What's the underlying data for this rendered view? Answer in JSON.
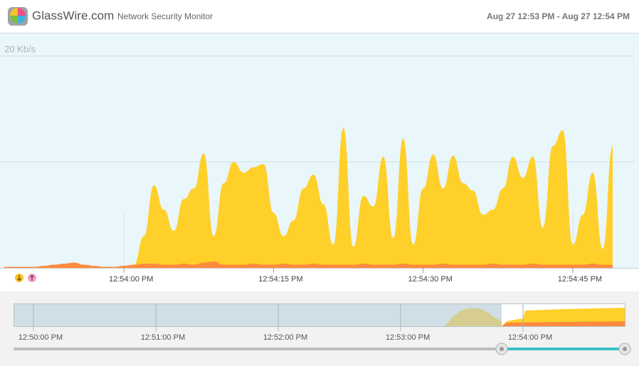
{
  "header": {
    "logo": "GlassWire.com",
    "subtitle": "Network Security Monitor",
    "time_range": "Aug 27 12:53 PM - Aug 27 12:54 PM"
  },
  "chart_data": {
    "type": "area",
    "x": [
      "12:53:48 PM",
      "12:53:49 PM",
      "12:53:50 PM",
      "12:53:51 PM",
      "12:53:52 PM",
      "12:53:53 PM",
      "12:53:54 PM",
      "12:53:55 PM",
      "12:53:56 PM",
      "12:53:57 PM",
      "12:53:58 PM",
      "12:53:59 PM",
      "12:54:00 PM",
      "12:54:01 PM",
      "12:54:02 PM",
      "12:54:03 PM",
      "12:54:04 PM",
      "12:54:05 PM",
      "12:54:06 PM",
      "12:54:07 PM",
      "12:54:08 PM",
      "12:54:09 PM",
      "12:54:10 PM",
      "12:54:11 PM",
      "12:54:12 PM",
      "12:54:13 PM",
      "12:54:14 PM",
      "12:54:15 PM",
      "12:54:16 PM",
      "12:54:17 PM",
      "12:54:18 PM",
      "12:54:19 PM",
      "12:54:20 PM",
      "12:54:21 PM",
      "12:54:22 PM",
      "12:54:23 PM",
      "12:54:24 PM",
      "12:54:25 PM",
      "12:54:26 PM",
      "12:54:27 PM",
      "12:54:28 PM",
      "12:54:29 PM",
      "12:54:30 PM",
      "12:54:31 PM",
      "12:54:32 PM",
      "12:54:33 PM",
      "12:54:34 PM",
      "12:54:35 PM",
      "12:54:36 PM",
      "12:54:37 PM",
      "12:54:38 PM",
      "12:54:39 PM",
      "12:54:40 PM",
      "12:54:41 PM",
      "12:54:42 PM",
      "12:54:43 PM",
      "12:54:44 PM",
      "12:54:45 PM",
      "12:54:46 PM",
      "12:54:47 PM",
      "12:54:48 PM",
      "12:54:49 PM"
    ],
    "series": [
      {
        "color": "#ffd02a",
        "values": [
          0,
          0,
          0,
          0,
          0,
          0,
          0,
          0,
          0,
          0,
          0,
          0,
          0.2,
          0.3,
          3.0,
          7.8,
          5.5,
          3.5,
          6.5,
          7.5,
          10.8,
          3.0,
          8.0,
          10.0,
          9.0,
          9.5,
          9.8,
          5.2,
          3.0,
          4.5,
          7.5,
          8.8,
          6.0,
          2.2,
          13.2,
          2.0,
          6.8,
          5.8,
          10.5,
          2.8,
          12.2,
          2.2,
          7.5,
          10.7,
          7.5,
          10.6,
          8.0,
          7.3,
          5.0,
          5.5,
          7.5,
          10.5,
          8.5,
          10.5,
          3.8,
          11.5,
          13.0,
          2.2,
          5.0,
          9.0,
          1.8,
          11.5
        ]
      },
      {
        "color": "#ff8a3d",
        "values": [
          0.1,
          0.1,
          0.1,
          0.1,
          0.2,
          0.3,
          0.4,
          0.5,
          0.3,
          0.2,
          0.1,
          0.1,
          0.2,
          0.3,
          0.4,
          0.4,
          0.3,
          0.3,
          0.4,
          0.3,
          0.5,
          0.6,
          0.3,
          0.3,
          0.3,
          0.4,
          0.3,
          0.3,
          0.4,
          0.3,
          0.3,
          0.4,
          0.3,
          0.3,
          0.3,
          0.3,
          0.4,
          0.3,
          0.3,
          0.3,
          0.4,
          0.3,
          0.3,
          0.3,
          0.4,
          0.3,
          0.3,
          0.3,
          0.3,
          0.4,
          0.3,
          0.3,
          0.3,
          0.4,
          0.3,
          0.3,
          0.3,
          0.3,
          0.3,
          0.4,
          0.3,
          0.3
        ]
      }
    ],
    "xlim": [
      "12:53:48 PM",
      "12:54:50 PM"
    ],
    "xticks": [
      "12:54:00 PM",
      "12:54:15 PM",
      "12:54:30 PM",
      "12:54:45 PM"
    ],
    "ylim": [
      0,
      22
    ],
    "yticks": [
      {
        "value": 20,
        "label": "20 Kb/s"
      }
    ],
    "gridlines": [
      10,
      20
    ],
    "grid": true
  },
  "timeline": {
    "labels": [
      "12:50:00 PM",
      "12:51:00 PM",
      "12:52:00 PM",
      "12:53:00 PM",
      "12:54:00 PM"
    ]
  }
}
